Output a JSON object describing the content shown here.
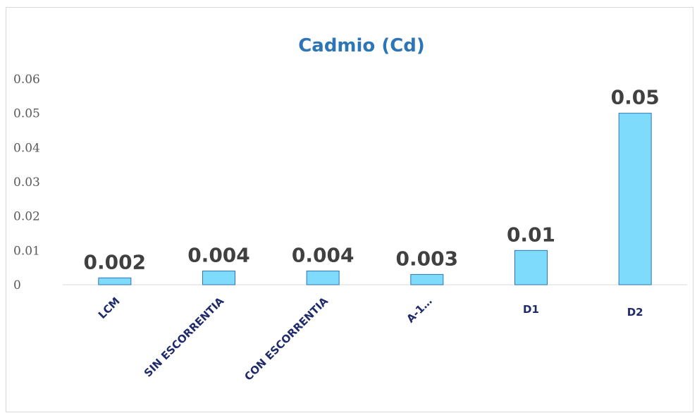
{
  "chart_data": {
    "type": "bar",
    "title": "Cadmio (Cd)",
    "xlabel": "",
    "ylabel": "",
    "categories": [
      "LCM",
      "SIN ESCORRENTIA",
      "CON ESCORRENTIA",
      "A-1…",
      "D1",
      "D2"
    ],
    "category_label_rotation": [
      -45,
      -45,
      -45,
      -45,
      0,
      0
    ],
    "values": [
      0.002,
      0.004,
      0.004,
      0.003,
      0.01,
      0.05
    ],
    "data_labels": [
      "0.002",
      "0.004",
      "0.004",
      "0.003",
      "0.01",
      "0.05"
    ],
    "ylim": [
      0,
      0.06
    ],
    "yticks": [
      0,
      0.01,
      0.02,
      0.03,
      0.04,
      0.05,
      0.06
    ],
    "ytick_labels": [
      "0",
      "0.01",
      "0.02",
      "0.03",
      "0.04",
      "0.05",
      "0.06"
    ],
    "grid": false,
    "legend": "none",
    "colors": {
      "bar_fill": "#7fdbfb",
      "bar_stroke": "#2e75b6",
      "title": "#2e75b6",
      "axis": "#d9d9d9"
    }
  }
}
